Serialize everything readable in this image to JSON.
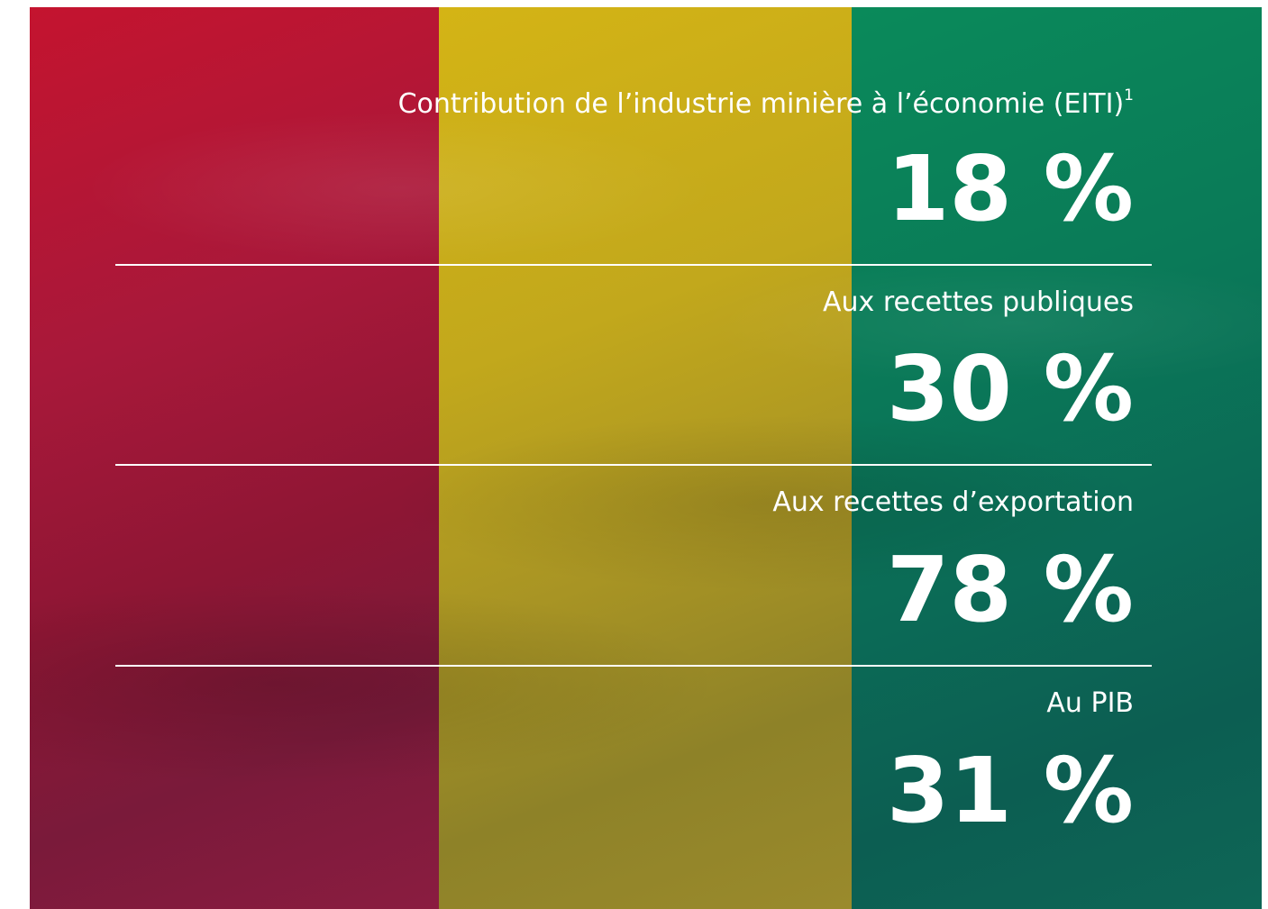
{
  "items": [
    {
      "label": "Contribution de l’industrie minière à l’économie (EITI)",
      "footnote": "1",
      "value": "18 %"
    },
    {
      "label": "Aux recettes publiques",
      "value": "30 %"
    },
    {
      "label": "Aux recettes d’exportation",
      "value": "78 %"
    },
    {
      "label": "Au PIB",
      "value": "31 %"
    }
  ]
}
